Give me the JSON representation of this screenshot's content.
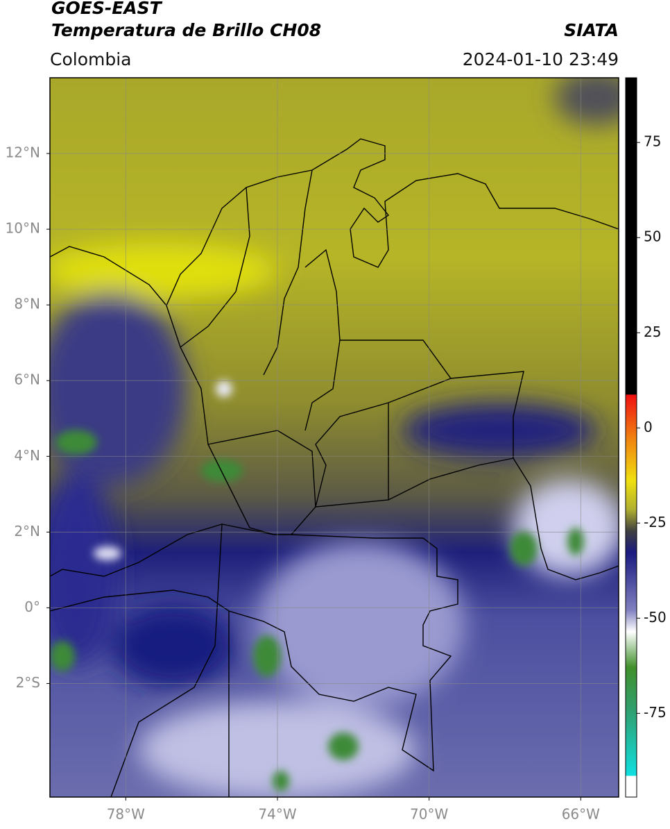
{
  "header": {
    "title_1": "GOES-EAST",
    "title_2": "Temperatura de Brillo CH08",
    "org": "SIATA",
    "region": "Colombia",
    "datetime": "2024-01-10 23:49"
  },
  "map": {
    "xlim": [
      -80,
      -65
    ],
    "ylim": [
      -5,
      14
    ],
    "xticks": [
      {
        "value": -78,
        "label": "78°W"
      },
      {
        "value": -74,
        "label": "74°W"
      },
      {
        "value": -70,
        "label": "70°W"
      },
      {
        "value": -66,
        "label": "66°W"
      }
    ],
    "yticks": [
      {
        "value": 12,
        "label": "12°N"
      },
      {
        "value": 10,
        "label": "10°N"
      },
      {
        "value": 8,
        "label": "8°N"
      },
      {
        "value": 6,
        "label": "6°N"
      },
      {
        "value": 4,
        "label": "4°N"
      },
      {
        "value": 2,
        "label": "2°N"
      },
      {
        "value": 0,
        "label": "0°"
      },
      {
        "value": -2,
        "label": "2°S"
      }
    ],
    "grid": true
  },
  "colorbar": {
    "ylim": [
      -97,
      92
    ],
    "yticks": [
      75,
      50,
      25,
      0,
      -25,
      -50,
      -75
    ]
  }
}
